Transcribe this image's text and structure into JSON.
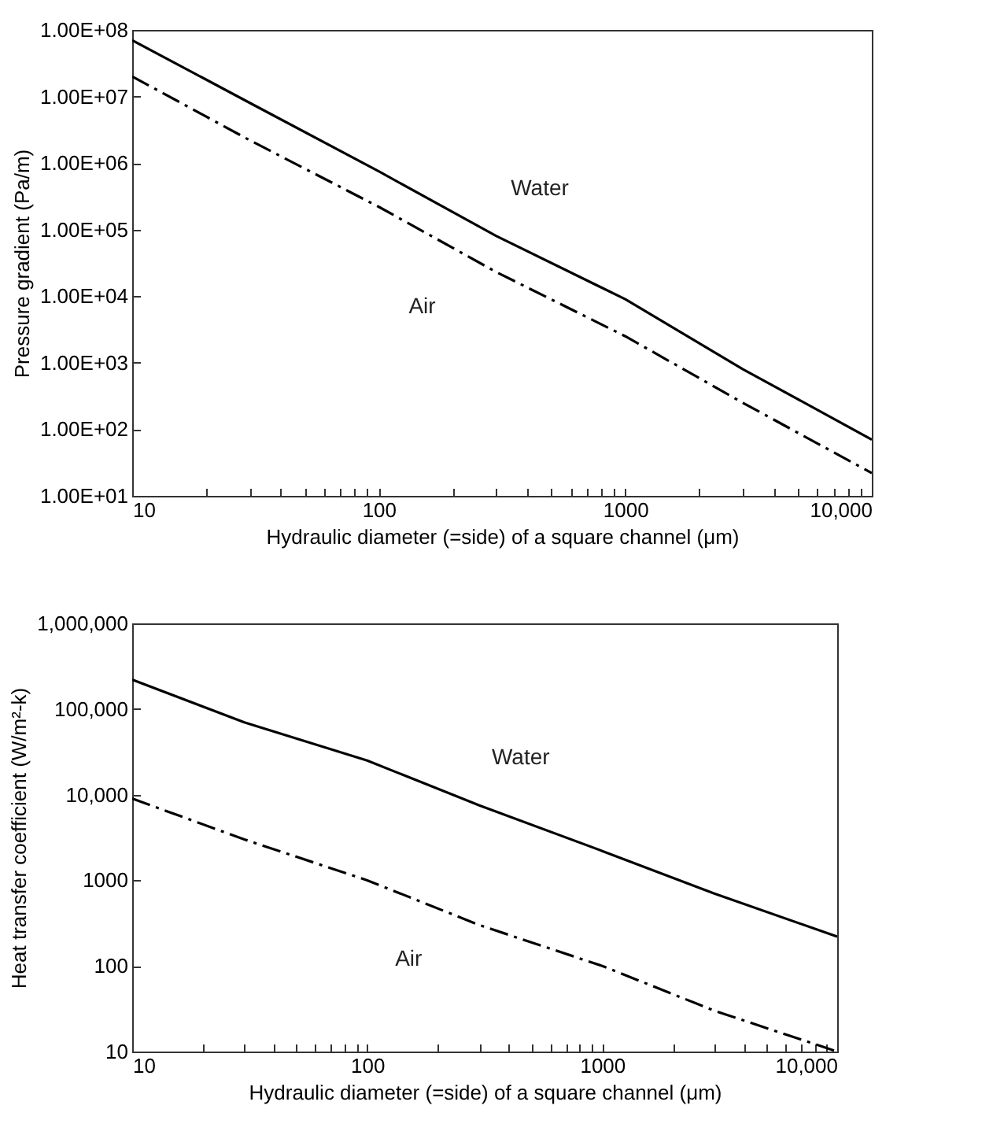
{
  "chart_data": [
    {
      "type": "line",
      "xlabel": "Hydraulic diameter (=side) of a square channel (μm)",
      "ylabel": "Pressure gradient (Pa/m)",
      "log": "xy",
      "grid": false,
      "legend": false,
      "xlim": [
        10,
        10000
      ],
      "ylim": [
        10,
        100000000
      ],
      "xticks": [
        10,
        {
          "value": 20,
          "label": null
        },
        {
          "value": 30,
          "label": null
        },
        {
          "value": 40,
          "label": null
        },
        {
          "value": 50,
          "label": null
        },
        {
          "value": 60,
          "label": null
        },
        {
          "value": 70,
          "label": null
        },
        {
          "value": 80,
          "label": null
        },
        {
          "value": 90,
          "label": null
        },
        100,
        {
          "value": 200,
          "label": null
        },
        {
          "value": 300,
          "label": null
        },
        {
          "value": 400,
          "label": null
        },
        {
          "value": 500,
          "label": null
        },
        {
          "value": 600,
          "label": null
        },
        {
          "value": 700,
          "label": null
        },
        {
          "value": 800,
          "label": null
        },
        {
          "value": 900,
          "label": null
        },
        1000,
        {
          "value": 2000,
          "label": null
        },
        {
          "value": 3000,
          "label": null
        },
        {
          "value": 4000,
          "label": null
        },
        {
          "value": 5000,
          "label": null
        },
        {
          "value": 6000,
          "label": null
        },
        {
          "value": 7000,
          "label": null
        },
        {
          "value": 8000,
          "label": null
        },
        {
          "value": 9000,
          "label": null
        },
        {
          "value": 10000,
          "label": "10,000"
        }
      ],
      "yticks": [
        {
          "value": 10,
          "label": "1.00E+01"
        },
        {
          "value": 100,
          "label": "1.00E+02"
        },
        {
          "value": 1000,
          "label": "1.00E+03"
        },
        {
          "value": 10000,
          "label": "1.00E+04"
        },
        {
          "value": 100000,
          "label": "1.00E+05"
        },
        {
          "value": 1000000,
          "label": "1.00E+06"
        },
        {
          "value": 10000000,
          "label": "1.00E+07"
        },
        {
          "value": 100000000,
          "label": "1.00E+08"
        }
      ],
      "x": [
        10,
        30,
        100,
        300,
        1000,
        3000,
        10000
      ],
      "series": [
        {
          "name": "Water",
          "color": "#000000",
          "line_style": "solid",
          "values": [
            70000000,
            8000000,
            750000,
            80000,
            9000,
            800,
            70
          ]
        },
        {
          "name": "Air",
          "color": "#000000",
          "line_style": "dashed",
          "values": [
            20000000,
            2200000,
            220000,
            23000,
            2500,
            250,
            22
          ]
        }
      ]
    },
    {
      "type": "line",
      "xlabel": "Hydraulic diameter (=side) of a square channel (μm)",
      "ylabel": "Heat transfer coefficient (W/m²-k)",
      "log": "xy",
      "grid": false,
      "legend": false,
      "xlim": [
        10,
        10000
      ],
      "ylim": [
        10,
        1000000
      ],
      "xticks": [
        10,
        {
          "value": 20,
          "label": null
        },
        {
          "value": 30,
          "label": null
        },
        {
          "value": 40,
          "label": null
        },
        {
          "value": 50,
          "label": null
        },
        {
          "value": 60,
          "label": null
        },
        {
          "value": 70,
          "label": null
        },
        {
          "value": 80,
          "label": null
        },
        {
          "value": 90,
          "label": null
        },
        100,
        {
          "value": 200,
          "label": null
        },
        {
          "value": 300,
          "label": null
        },
        {
          "value": 400,
          "label": null
        },
        {
          "value": 500,
          "label": null
        },
        {
          "value": 600,
          "label": null
        },
        {
          "value": 700,
          "label": null
        },
        {
          "value": 800,
          "label": null
        },
        {
          "value": 900,
          "label": null
        },
        1000,
        {
          "value": 2000,
          "label": null
        },
        {
          "value": 3000,
          "label": null
        },
        {
          "value": 4000,
          "label": null
        },
        {
          "value": 5000,
          "label": null
        },
        {
          "value": 6000,
          "label": null
        },
        {
          "value": 7000,
          "label": null
        },
        {
          "value": 8000,
          "label": null
        },
        {
          "value": 9000,
          "label": null
        },
        {
          "value": 10000,
          "label": "10,000"
        }
      ],
      "yticks": [
        10,
        100,
        1000,
        {
          "value": 10000,
          "label": "10,000"
        },
        {
          "value": 100000,
          "label": "100,000"
        },
        {
          "value": 1000000,
          "label": "1,000,000"
        }
      ],
      "x": [
        10,
        30,
        100,
        300,
        1000,
        3000,
        10000
      ],
      "series": [
        {
          "name": "Water",
          "color": "#000000",
          "line_style": "solid",
          "values": [
            220000,
            70000,
            25000,
            7500,
            2200,
            700,
            220
          ]
        },
        {
          "name": "Air",
          "color": "#000000",
          "line_style": "dashed",
          "values": [
            9000,
            3000,
            1000,
            300,
            100,
            30,
            10
          ]
        }
      ]
    }
  ]
}
